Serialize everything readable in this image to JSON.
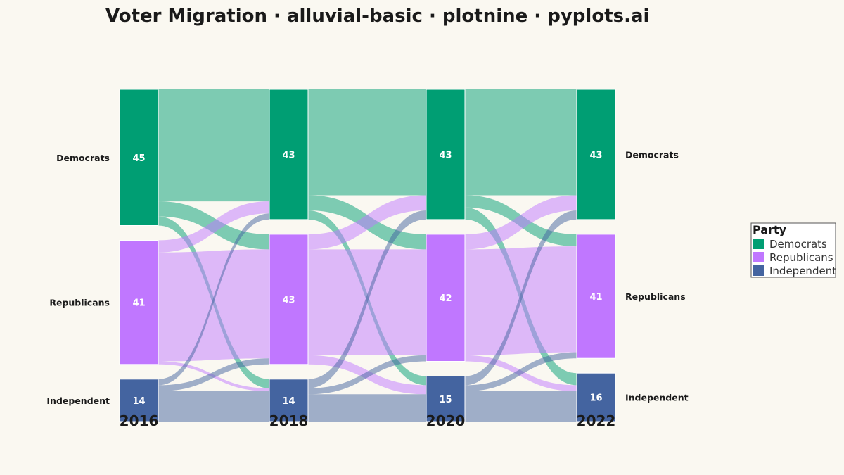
{
  "chart_data": {
    "type": "alluvial",
    "title": "Voter Migration · alluvial-basic · plotnine · pyplots.ai",
    "years": [
      "2016",
      "2018",
      "2020",
      "2022"
    ],
    "parties": [
      "Democrats",
      "Republicans",
      "Independent"
    ],
    "colors": {
      "Democrats": "#009E73",
      "Republicans": "#C077FF",
      "Independent": "#4464A0"
    },
    "totals": [
      [
        45,
        41,
        14
      ],
      [
        43,
        43,
        14
      ],
      [
        43,
        42,
        15
      ],
      [
        43,
        41,
        16
      ]
    ],
    "flows": [
      [
        [
          37,
          5,
          3
        ],
        [
          4,
          36,
          1
        ],
        [
          2,
          2,
          10
        ]
      ],
      [
        [
          35,
          5,
          3
        ],
        [
          5,
          35,
          3
        ],
        [
          3,
          2,
          9
        ]
      ],
      [
        [
          35,
          4,
          4
        ],
        [
          5,
          35,
          2
        ],
        [
          3,
          2,
          10
        ]
      ]
    ],
    "legend": {
      "title": "Party",
      "position": "right",
      "entries": [
        "Democrats",
        "Republicans",
        "Independent"
      ]
    }
  }
}
